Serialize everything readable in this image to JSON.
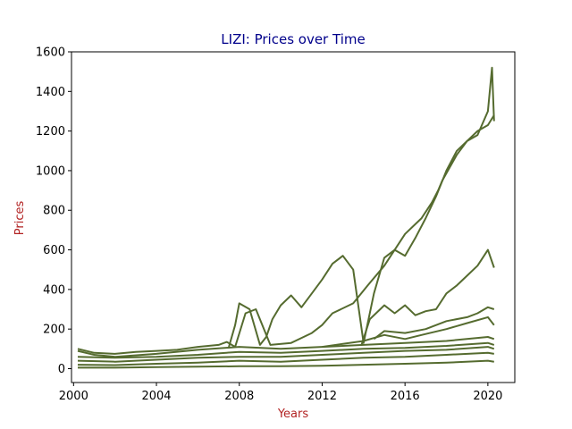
{
  "chart_data": {
    "type": "line",
    "title": "LIZI: Prices over Time",
    "xlabel": "Years",
    "ylabel": "Prices",
    "x_ticks": [
      "2000",
      "2004",
      "2008",
      "2012",
      "2016",
      "2020"
    ],
    "y_ticks": [
      "0",
      "200",
      "400",
      "600",
      "800",
      "1000",
      "1200",
      "1400",
      "1600"
    ],
    "xlim": [
      1999.9,
      2021.3
    ],
    "ylim": [
      -70,
      1600
    ],
    "grid": false,
    "legend": "none",
    "colors": {
      "line": "#556B2F",
      "title": "#00008B",
      "axis_label": "#B22222",
      "axes": "#000000"
    },
    "series": [
      {
        "x": [
          2000.2,
          2001.0,
          2002.0,
          2003.0,
          2004.0,
          2005.0,
          2006.0,
          2007.0,
          2007.4,
          2007.8,
          2008.3,
          2008.8,
          2009.5,
          2010.5,
          2011.5,
          2012.0,
          2012.5,
          2013.5,
          2014.2,
          2015.0,
          2016.0,
          2016.8,
          2017.3,
          2017.6,
          2017.8,
          2018.5,
          2019.0,
          2019.5,
          2020.0,
          2020.2,
          2020.3
        ],
        "values": [
          100,
          80,
          75,
          85,
          90,
          95,
          110,
          120,
          135,
          110,
          280,
          300,
          120,
          130,
          180,
          220,
          280,
          330,
          420,
          520,
          680,
          760,
          840,
          900,
          950,
          1080,
          1150,
          1180,
          1300,
          1520,
          1250
        ]
      },
      {
        "x": [
          2007.5,
          2007.8,
          2008.0,
          2008.5,
          2009.0,
          2009.3,
          2009.6,
          2010.0,
          2010.5,
          2011.0,
          2011.5,
          2012.0,
          2012.5,
          2013.0,
          2013.5,
          2014.0,
          2014.5,
          2015.0,
          2015.5,
          2016.0,
          2016.5,
          2017.0,
          2017.5,
          2018.0,
          2018.5,
          2019.0,
          2019.5,
          2020.0,
          2020.3
        ],
        "values": [
          110,
          220,
          330,
          300,
          120,
          160,
          250,
          320,
          370,
          310,
          380,
          450,
          530,
          570,
          500,
          130,
          380,
          560,
          600,
          570,
          660,
          760,
          870,
          1000,
          1100,
          1150,
          1200,
          1230,
          1280
        ]
      },
      {
        "x": [
          2013.9,
          2014.3,
          2015.0,
          2015.5,
          2016.0,
          2016.5,
          2017.0,
          2017.5,
          2018.0,
          2018.5,
          2019.0,
          2019.5,
          2020.0,
          2020.3
        ],
        "values": [
          120,
          250,
          320,
          280,
          320,
          270,
          290,
          300,
          380,
          420,
          470,
          520,
          600,
          510
        ]
      },
      {
        "x": [
          2014.5,
          2015.0,
          2016.0,
          2017.0,
          2018.0,
          2019.0,
          2019.5,
          2020.0,
          2020.3
        ],
        "values": [
          150,
          190,
          180,
          200,
          240,
          260,
          280,
          310,
          300
        ]
      },
      {
        "x": [
          2012.0,
          2013.0,
          2014.0,
          2015.0,
          2016.0,
          2017.0,
          2018.0,
          2019.0,
          2020.0,
          2020.3
        ],
        "values": [
          110,
          125,
          140,
          170,
          150,
          175,
          200,
          230,
          260,
          220
        ]
      },
      {
        "x": [
          2000.2,
          2001.0,
          2002.0,
          2004.0,
          2006.0,
          2008.0,
          2010.0,
          2012.0,
          2014.0,
          2016.0,
          2018.0,
          2020.0,
          2020.3
        ],
        "values": [
          90,
          70,
          60,
          75,
          95,
          110,
          100,
          110,
          120,
          130,
          140,
          160,
          150
        ]
      },
      {
        "x": [
          2000.2,
          2002.0,
          2004.0,
          2006.0,
          2008.0,
          2010.0,
          2012.0,
          2014.0,
          2016.0,
          2018.0,
          2020.0,
          2020.3
        ],
        "values": [
          60,
          55,
          60,
          70,
          85,
          80,
          90,
          100,
          105,
          115,
          130,
          120
        ]
      },
      {
        "x": [
          2000.2,
          2002.0,
          2004.0,
          2006.0,
          2008.0,
          2010.0,
          2012.0,
          2014.0,
          2016.0,
          2018.0,
          2020.0,
          2020.3
        ],
        "values": [
          40,
          35,
          45,
          55,
          60,
          60,
          70,
          80,
          90,
          95,
          110,
          100
        ]
      },
      {
        "x": [
          2000.2,
          2002.0,
          2004.0,
          2006.0,
          2008.0,
          2010.0,
          2012.0,
          2014.0,
          2016.0,
          2018.0,
          2020.0,
          2020.3
        ],
        "values": [
          20,
          18,
          25,
          30,
          40,
          35,
          45,
          55,
          60,
          70,
          80,
          75
        ]
      },
      {
        "x": [
          2000.2,
          2002.0,
          2004.0,
          2006.0,
          2008.0,
          2010.0,
          2012.0,
          2014.0,
          2016.0,
          2018.0,
          2020.0,
          2020.3
        ],
        "values": [
          5,
          5,
          8,
          10,
          12,
          12,
          15,
          20,
          25,
          30,
          40,
          35
        ]
      }
    ]
  }
}
